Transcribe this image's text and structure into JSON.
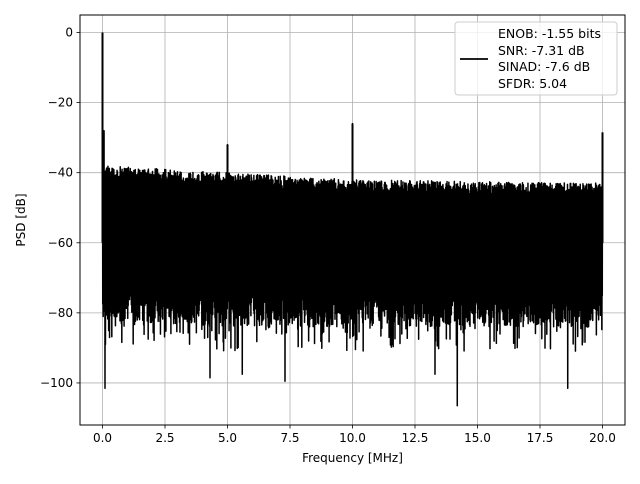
{
  "chart_data": {
    "type": "line",
    "xlabel": "Frequency [MHz]",
    "ylabel": "PSD [dB]",
    "xlim": [
      -0.9,
      20.9
    ],
    "ylim": [
      -112,
      5
    ],
    "xticks": [
      0.0,
      2.5,
      5.0,
      7.5,
      10.0,
      12.5,
      15.0,
      17.5,
      20.0
    ],
    "xtick_labels": [
      "0.0",
      "2.5",
      "5.0",
      "7.5",
      "10.0",
      "12.5",
      "15.0",
      "17.5",
      "20.0"
    ],
    "yticks": [
      0,
      -20,
      -40,
      -60,
      -80,
      -100
    ],
    "ytick_labels": [
      "0",
      "−20",
      "−40",
      "−60",
      "−80",
      "−100"
    ],
    "grid": true,
    "legend_position": "top-right",
    "legend_lines": [
      "ENOB: -1.55 bits",
      "SNR: -7.31 dB",
      "SINAD: -7.6 dB",
      "SFDR: 5.04"
    ],
    "series": [
      {
        "color": "#000000",
        "x_range": [
          0,
          20
        ],
        "noise_envelope": {
          "x": [
            0,
            5,
            10,
            15,
            20
          ],
          "upper": [
            -38,
            -40,
            -42,
            -42.5,
            -43
          ],
          "lower_typical": [
            -78,
            -80,
            -80,
            -80,
            -80
          ]
        },
        "spikes": [
          {
            "x": 0.0,
            "y": 0
          },
          {
            "x": 0.05,
            "y": -28
          },
          {
            "x": 5.0,
            "y": -32
          },
          {
            "x": 10.0,
            "y": -26
          },
          {
            "x": 20.0,
            "y": -28.5
          }
        ],
        "dips": [
          {
            "x": 0.1,
            "y": -101.5
          },
          {
            "x": 4.3,
            "y": -98.5
          },
          {
            "x": 5.6,
            "y": -97.5
          },
          {
            "x": 7.3,
            "y": -99.5
          },
          {
            "x": 13.3,
            "y": -97.5
          },
          {
            "x": 14.2,
            "y": -106.5
          },
          {
            "x": 18.6,
            "y": -101.5
          }
        ]
      }
    ]
  }
}
